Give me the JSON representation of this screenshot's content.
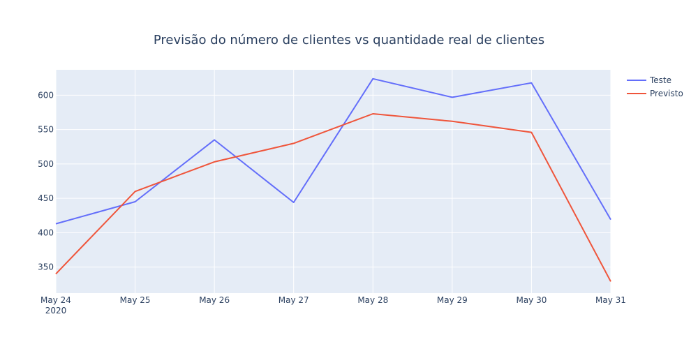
{
  "chart_data": {
    "type": "line",
    "title": "Previsão do número de clientes vs quantidade real de clientes",
    "xlabel": "",
    "ylabel": "",
    "x": [
      "May 24",
      "May 25",
      "May 26",
      "May 27",
      "May 28",
      "May 29",
      "May 30",
      "May 31"
    ],
    "x_year_label": "2020",
    "xlim": [
      "2020-05-24",
      "2020-05-31"
    ],
    "ylim": [
      312,
      637
    ],
    "y_ticks": [
      350,
      400,
      450,
      500,
      550,
      600
    ],
    "grid": true,
    "legend_position": "top-right",
    "series": [
      {
        "name": "Teste",
        "color": "#636efa",
        "values": [
          413,
          445,
          535,
          444,
          624,
          597,
          618,
          419
        ]
      },
      {
        "name": "Previsto",
        "color": "#ef553b",
        "values": [
          340,
          460,
          503,
          530,
          573,
          562,
          546,
          329
        ]
      }
    ]
  }
}
